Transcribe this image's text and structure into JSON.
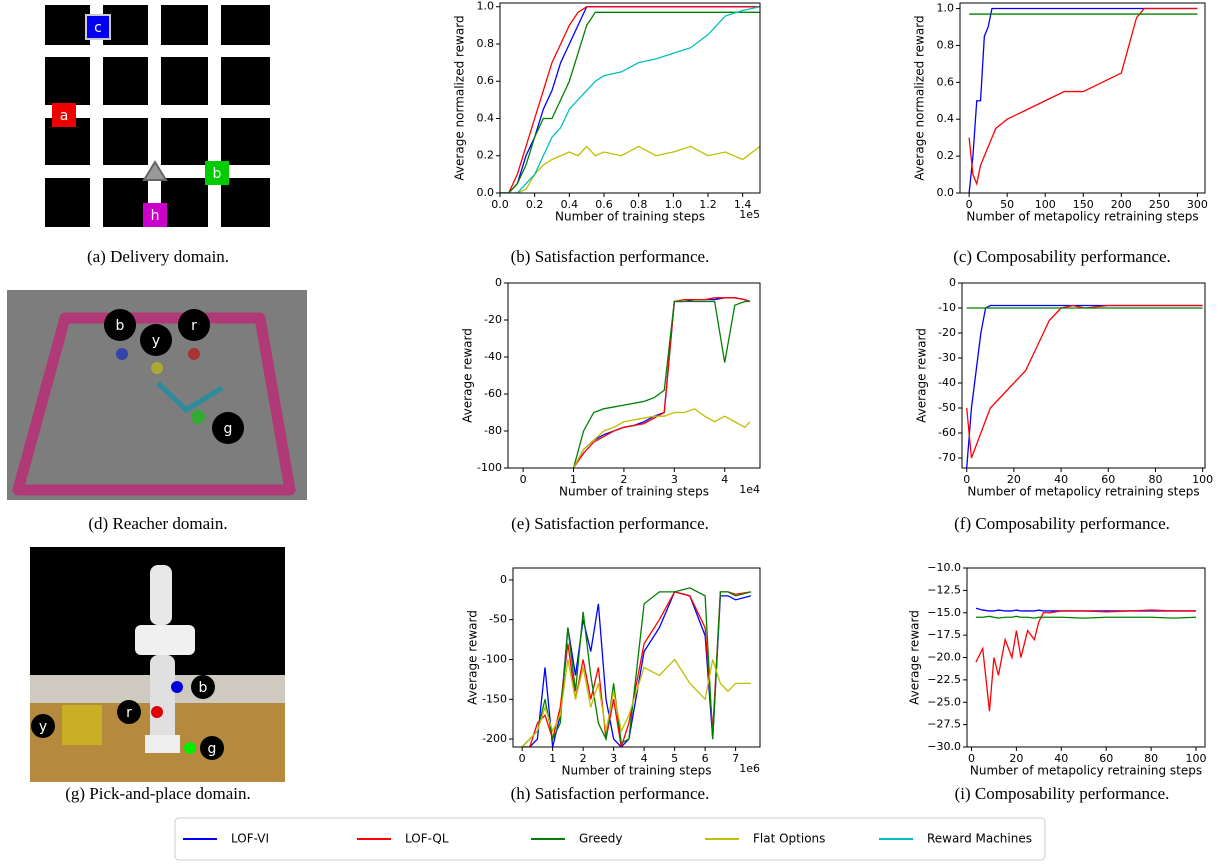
{
  "images": [
    {
      "caption": "(a) Delivery domain.",
      "labels": [
        "c",
        "a",
        "b",
        "h"
      ]
    },
    {
      "caption": "(d) Reacher domain.",
      "labels": [
        "b",
        "r",
        "y",
        "g"
      ]
    },
    {
      "caption": "(g) Pick-and-place domain.",
      "labels": [
        "b",
        "r",
        "y",
        "g"
      ]
    }
  ],
  "chart_data": [
    {
      "type": "line",
      "caption": "(b) Satisfaction performance.",
      "x_label": "Number of training steps",
      "y_label": "Average normalized reward",
      "x_offset": "1e5",
      "xlim": [
        0,
        1.5
      ],
      "ylim": [
        0,
        1.02
      ],
      "xticks": [
        {
          "value": 0,
          "label": "0.0"
        },
        {
          "value": 0.2,
          "label": "0.2"
        },
        {
          "value": 0.4,
          "label": "0.4"
        },
        {
          "value": 0.6,
          "label": "0.6"
        },
        {
          "value": 0.8,
          "label": "0.8"
        },
        {
          "value": 1.0,
          "label": "1.0"
        },
        {
          "value": 1.2,
          "label": "1.2"
        },
        {
          "value": 1.4,
          "label": "1.4"
        }
      ],
      "yticks": [
        {
          "value": 0,
          "label": "0.0"
        },
        {
          "value": 0.2,
          "label": "0.2"
        },
        {
          "value": 0.4,
          "label": "0.4"
        },
        {
          "value": 0.6,
          "label": "0.6"
        },
        {
          "value": 0.8,
          "label": "0.8"
        },
        {
          "value": 1.0,
          "label": "1.0"
        }
      ],
      "x": [
        0,
        0.05,
        0.1,
        0.15,
        0.2,
        0.25,
        0.3,
        0.35,
        0.4,
        0.45,
        0.5,
        0.55,
        0.6,
        0.7,
        0.8,
        0.9,
        1.0,
        1.1,
        1.2,
        1.3,
        1.4,
        1.5
      ],
      "series": [
        {
          "name": "LOF-VI",
          "color": "#0000ff",
          "values": [
            0,
            0,
            0.05,
            0.2,
            0.3,
            0.45,
            0.55,
            0.7,
            0.8,
            0.9,
            1.0,
            1.0,
            1.0,
            1.0,
            1.0,
            1.0,
            1.0,
            1.0,
            1.0,
            1.0,
            1.0,
            1.0
          ]
        },
        {
          "name": "LOF-QL",
          "color": "#ff0000",
          "values": [
            0,
            0,
            0.1,
            0.25,
            0.4,
            0.55,
            0.7,
            0.8,
            0.9,
            0.97,
            1.0,
            1.0,
            1.0,
            1.0,
            1.0,
            1.0,
            1.0,
            1.0,
            1.0,
            1.0,
            1.0,
            1.0
          ]
        },
        {
          "name": "Greedy",
          "color": "#008000",
          "values": [
            0,
            0,
            0.05,
            0.15,
            0.3,
            0.4,
            0.4,
            0.5,
            0.6,
            0.75,
            0.9,
            0.97,
            0.97,
            0.97,
            0.97,
            0.97,
            0.97,
            0.97,
            0.97,
            0.97,
            0.97,
            0.97
          ]
        },
        {
          "name": "Flat Options",
          "color": "#bfbf00",
          "values": [
            0,
            0,
            0,
            0.02,
            0.1,
            0.15,
            0.18,
            0.2,
            0.22,
            0.2,
            0.25,
            0.2,
            0.22,
            0.2,
            0.25,
            0.2,
            0.22,
            0.25,
            0.2,
            0.22,
            0.18,
            0.25
          ]
        },
        {
          "name": "Reward Machines",
          "color": "#00bfbf",
          "values": [
            0,
            0,
            0,
            0.05,
            0.1,
            0.2,
            0.3,
            0.35,
            0.45,
            0.5,
            0.55,
            0.6,
            0.63,
            0.65,
            0.7,
            0.72,
            0.75,
            0.78,
            0.85,
            0.95,
            0.98,
            1.0
          ]
        }
      ]
    },
    {
      "type": "line",
      "caption": "(c) Composability performance.",
      "x_label": "Number of metapolicy retraining steps",
      "y_label": "Average normalized reward",
      "xlim": [
        -12,
        310
      ],
      "ylim": [
        0,
        1.03
      ],
      "xticks": [
        0,
        50,
        100,
        150,
        200,
        250,
        300
      ],
      "yticks": [
        {
          "value": 0,
          "label": "0.0"
        },
        {
          "value": 0.2,
          "label": "0.2"
        },
        {
          "value": 0.4,
          "label": "0.4"
        },
        {
          "value": 0.6,
          "label": "0.6"
        },
        {
          "value": 0.8,
          "label": "0.8"
        },
        {
          "value": 1.0,
          "label": "1.0"
        }
      ],
      "x": [
        0,
        5,
        10,
        15,
        20,
        25,
        30,
        35,
        50,
        75,
        100,
        125,
        150,
        175,
        200,
        210,
        220,
        230,
        250,
        300
      ],
      "series": [
        {
          "name": "LOF-VI",
          "color": "#0000ff",
          "values": [
            0,
            0.2,
            0.5,
            0.5,
            0.85,
            0.9,
            1.0,
            1.0,
            1.0,
            1.0,
            1.0,
            1.0,
            1.0,
            1.0,
            1.0,
            1.0,
            1.0,
            1.0,
            1.0,
            1.0
          ]
        },
        {
          "name": "LOF-QL",
          "color": "#ff0000",
          "values": [
            0.3,
            0.1,
            0.05,
            0.15,
            0.2,
            0.25,
            0.3,
            0.35,
            0.4,
            0.45,
            0.5,
            0.55,
            0.55,
            0.6,
            0.65,
            0.8,
            0.95,
            1.0,
            1.0,
            1.0
          ]
        },
        {
          "name": "Greedy",
          "color": "#008000",
          "values": [
            0.97,
            0.97,
            0.97,
            0.97,
            0.97,
            0.97,
            0.97,
            0.97,
            0.97,
            0.97,
            0.97,
            0.97,
            0.97,
            0.97,
            0.97,
            0.97,
            0.97,
            0.97,
            0.97,
            0.97
          ]
        }
      ]
    },
    {
      "type": "line",
      "caption": "(e) Satisfaction performance.",
      "x_label": "Number of training steps",
      "y_label": "Average reward",
      "x_offset": "1e4",
      "xlim": [
        -0.3,
        4.7
      ],
      "ylim": [
        -100,
        0
      ],
      "xticks": [
        0,
        1,
        2,
        3,
        4
      ],
      "yticks": [
        -100,
        -80,
        -60,
        -40,
        -20,
        0
      ],
      "x": [
        1.0,
        1.2,
        1.4,
        1.6,
        1.8,
        2.0,
        2.2,
        2.4,
        2.6,
        2.8,
        3.0,
        3.2,
        3.4,
        3.6,
        3.8,
        4.0,
        4.2,
        4.4,
        4.5
      ],
      "series": [
        {
          "name": "LOF-VI",
          "color": "#0000ff",
          "values": [
            -100,
            -90,
            -85,
            -82,
            -80,
            -78,
            -77,
            -75,
            -72,
            -70,
            -10,
            -10,
            -9,
            -9,
            -9,
            -8,
            -8,
            -9,
            -10
          ]
        },
        {
          "name": "LOF-QL",
          "color": "#ff0000",
          "values": [
            -100,
            -92,
            -86,
            -83,
            -80,
            -78,
            -77,
            -76,
            -73,
            -70,
            -10,
            -9,
            -9,
            -9,
            -8,
            -8,
            -8,
            -9,
            -10
          ]
        },
        {
          "name": "Greedy",
          "color": "#008000",
          "values": [
            -100,
            -80,
            -70,
            -68,
            -67,
            -66,
            -65,
            -64,
            -62,
            -58,
            -10,
            -10,
            -10,
            -10,
            -10,
            -43,
            -12,
            -10,
            -10
          ]
        },
        {
          "name": "Flat Options",
          "color": "#bfbf00",
          "values": [
            -100,
            -90,
            -85,
            -80,
            -78,
            -75,
            -74,
            -73,
            -72,
            -72,
            -70,
            -70,
            -68,
            -72,
            -75,
            -72,
            -75,
            -78,
            -75
          ]
        }
      ]
    },
    {
      "type": "line",
      "caption": "(f) Composability performance.",
      "x_label": "Number of metapolicy retraining steps",
      "y_label": "Average reward",
      "xlim": [
        -2,
        101
      ],
      "ylim": [
        -74,
        0
      ],
      "xticks": [
        0,
        20,
        40,
        60,
        80,
        100
      ],
      "yticks": [
        -70,
        -60,
        -50,
        -40,
        -30,
        -20,
        -10,
        0
      ],
      "x": [
        0,
        2,
        4,
        6,
        8,
        10,
        15,
        20,
        25,
        30,
        35,
        40,
        45,
        50,
        60,
        70,
        80,
        90,
        100
      ],
      "series": [
        {
          "name": "LOF-VI",
          "color": "#0000ff",
          "values": [
            -74,
            -50,
            -35,
            -20,
            -10,
            -9,
            -9,
            -9,
            -9,
            -9,
            -9,
            -9,
            -9,
            -9,
            -9,
            -9,
            -9,
            -9,
            -9
          ]
        },
        {
          "name": "LOF-QL",
          "color": "#ff0000",
          "values": [
            -50,
            -70,
            -65,
            -60,
            -55,
            -50,
            -45,
            -40,
            -35,
            -25,
            -15,
            -10,
            -9,
            -10,
            -9,
            -9,
            -9,
            -9,
            -9
          ]
        },
        {
          "name": "Greedy",
          "color": "#008000",
          "values": [
            -10,
            -10,
            -10,
            -10,
            -10,
            -10,
            -10,
            -10,
            -10,
            -10,
            -10,
            -10,
            -10,
            -10,
            -10,
            -10,
            -10,
            -10,
            -10
          ]
        }
      ]
    },
    {
      "type": "line",
      "caption": "(h) Satisfaction performance.",
      "x_label": "Number of training steps",
      "y_label": "Average reward",
      "x_offset": "1e6",
      "xlim": [
        -0.3,
        7.8
      ],
      "ylim": [
        -210,
        15
      ],
      "xticks": [
        0,
        1,
        2,
        3,
        4,
        5,
        6,
        7
      ],
      "yticks": [
        -200,
        -150,
        -100,
        -50,
        0
      ],
      "x": [
        0,
        0.25,
        0.5,
        0.75,
        1,
        1.25,
        1.5,
        1.75,
        2,
        2.25,
        2.5,
        2.75,
        3,
        3.25,
        3.5,
        4,
        4.5,
        5,
        5.5,
        6,
        6.25,
        6.5,
        6.75,
        7,
        7.5
      ],
      "series": [
        {
          "name": "LOF-VI",
          "color": "#0000ff",
          "values": [
            -210,
            -210,
            -200,
            -110,
            -210,
            -170,
            -60,
            -120,
            -50,
            -90,
            -30,
            -150,
            -200,
            -210,
            -200,
            -90,
            -60,
            -15,
            -20,
            -70,
            -200,
            -20,
            -20,
            -25,
            -20
          ]
        },
        {
          "name": "LOF-QL",
          "color": "#ff0000",
          "values": [
            -210,
            -210,
            -180,
            -170,
            -200,
            -160,
            -80,
            -150,
            -100,
            -150,
            -110,
            -200,
            -150,
            -210,
            -180,
            -80,
            -50,
            -15,
            -20,
            -60,
            -190,
            -15,
            -15,
            -18,
            -15
          ]
        },
        {
          "name": "Greedy",
          "color": "#008000",
          "values": [
            -210,
            -200,
            -190,
            -150,
            -200,
            -180,
            -60,
            -140,
            -40,
            -120,
            -180,
            -200,
            -130,
            -205,
            -200,
            -30,
            -15,
            -15,
            -10,
            -20,
            -200,
            -15,
            -15,
            -20,
            -15
          ]
        },
        {
          "name": "Flat Options",
          "color": "#bfbf00",
          "values": [
            -210,
            -200,
            -190,
            -160,
            -190,
            -170,
            -100,
            -150,
            -110,
            -160,
            -130,
            -190,
            -140,
            -190,
            -170,
            -110,
            -120,
            -100,
            -130,
            -150,
            -100,
            -130,
            -140,
            -130,
            -130
          ]
        }
      ]
    },
    {
      "type": "line",
      "caption": "(i) Composability performance.",
      "x_label": "Number of metapolicy retraining steps",
      "y_label": "Average reward",
      "xlim": [
        -2,
        104
      ],
      "ylim": [
        -30,
        -10
      ],
      "xticks": [
        0,
        20,
        40,
        60,
        80,
        100
      ],
      "yticks": [
        {
          "value": -30,
          "label": "−30.0"
        },
        {
          "value": -27.5,
          "label": "−27.5"
        },
        {
          "value": -25,
          "label": "−25.0"
        },
        {
          "value": -22.5,
          "label": "−22.5"
        },
        {
          "value": -20,
          "label": "−20.0"
        },
        {
          "value": -17.5,
          "label": "−17.5"
        },
        {
          "value": -15,
          "label": "−15.0"
        },
        {
          "value": -12.5,
          "label": "−12.5"
        },
        {
          "value": -10,
          "label": "−10.0"
        }
      ],
      "x": [
        2,
        5,
        8,
        10,
        12,
        15,
        18,
        20,
        22,
        25,
        28,
        30,
        32,
        35,
        40,
        50,
        60,
        70,
        80,
        90,
        100
      ],
      "series": [
        {
          "name": "LOF-VI",
          "color": "#0000ff",
          "values": [
            -14.5,
            -14.7,
            -14.8,
            -14.8,
            -14.7,
            -14.8,
            -14.8,
            -14.7,
            -14.8,
            -14.8,
            -14.8,
            -14.7,
            -14.8,
            -14.8,
            -14.8,
            -14.8,
            -14.8,
            -14.8,
            -14.8,
            -14.8,
            -14.8
          ]
        },
        {
          "name": "LOF-QL",
          "color": "#ff0000",
          "values": [
            -20.5,
            -19,
            -26,
            -20,
            -22,
            -18,
            -20,
            -17,
            -20,
            -17,
            -18,
            -16,
            -15,
            -15,
            -14.8,
            -14.8,
            -14.9,
            -14.8,
            -14.7,
            -14.8,
            -14.8
          ]
        },
        {
          "name": "Greedy",
          "color": "#008000",
          "values": [
            -15.5,
            -15.5,
            -15.4,
            -15.5,
            -15.6,
            -15.5,
            -15.5,
            -15.4,
            -15.5,
            -15.5,
            -15.6,
            -15.5,
            -15.5,
            -15.5,
            -15.5,
            -15.6,
            -15.5,
            -15.5,
            -15.5,
            -15.6,
            -15.5
          ]
        }
      ]
    }
  ]
}
